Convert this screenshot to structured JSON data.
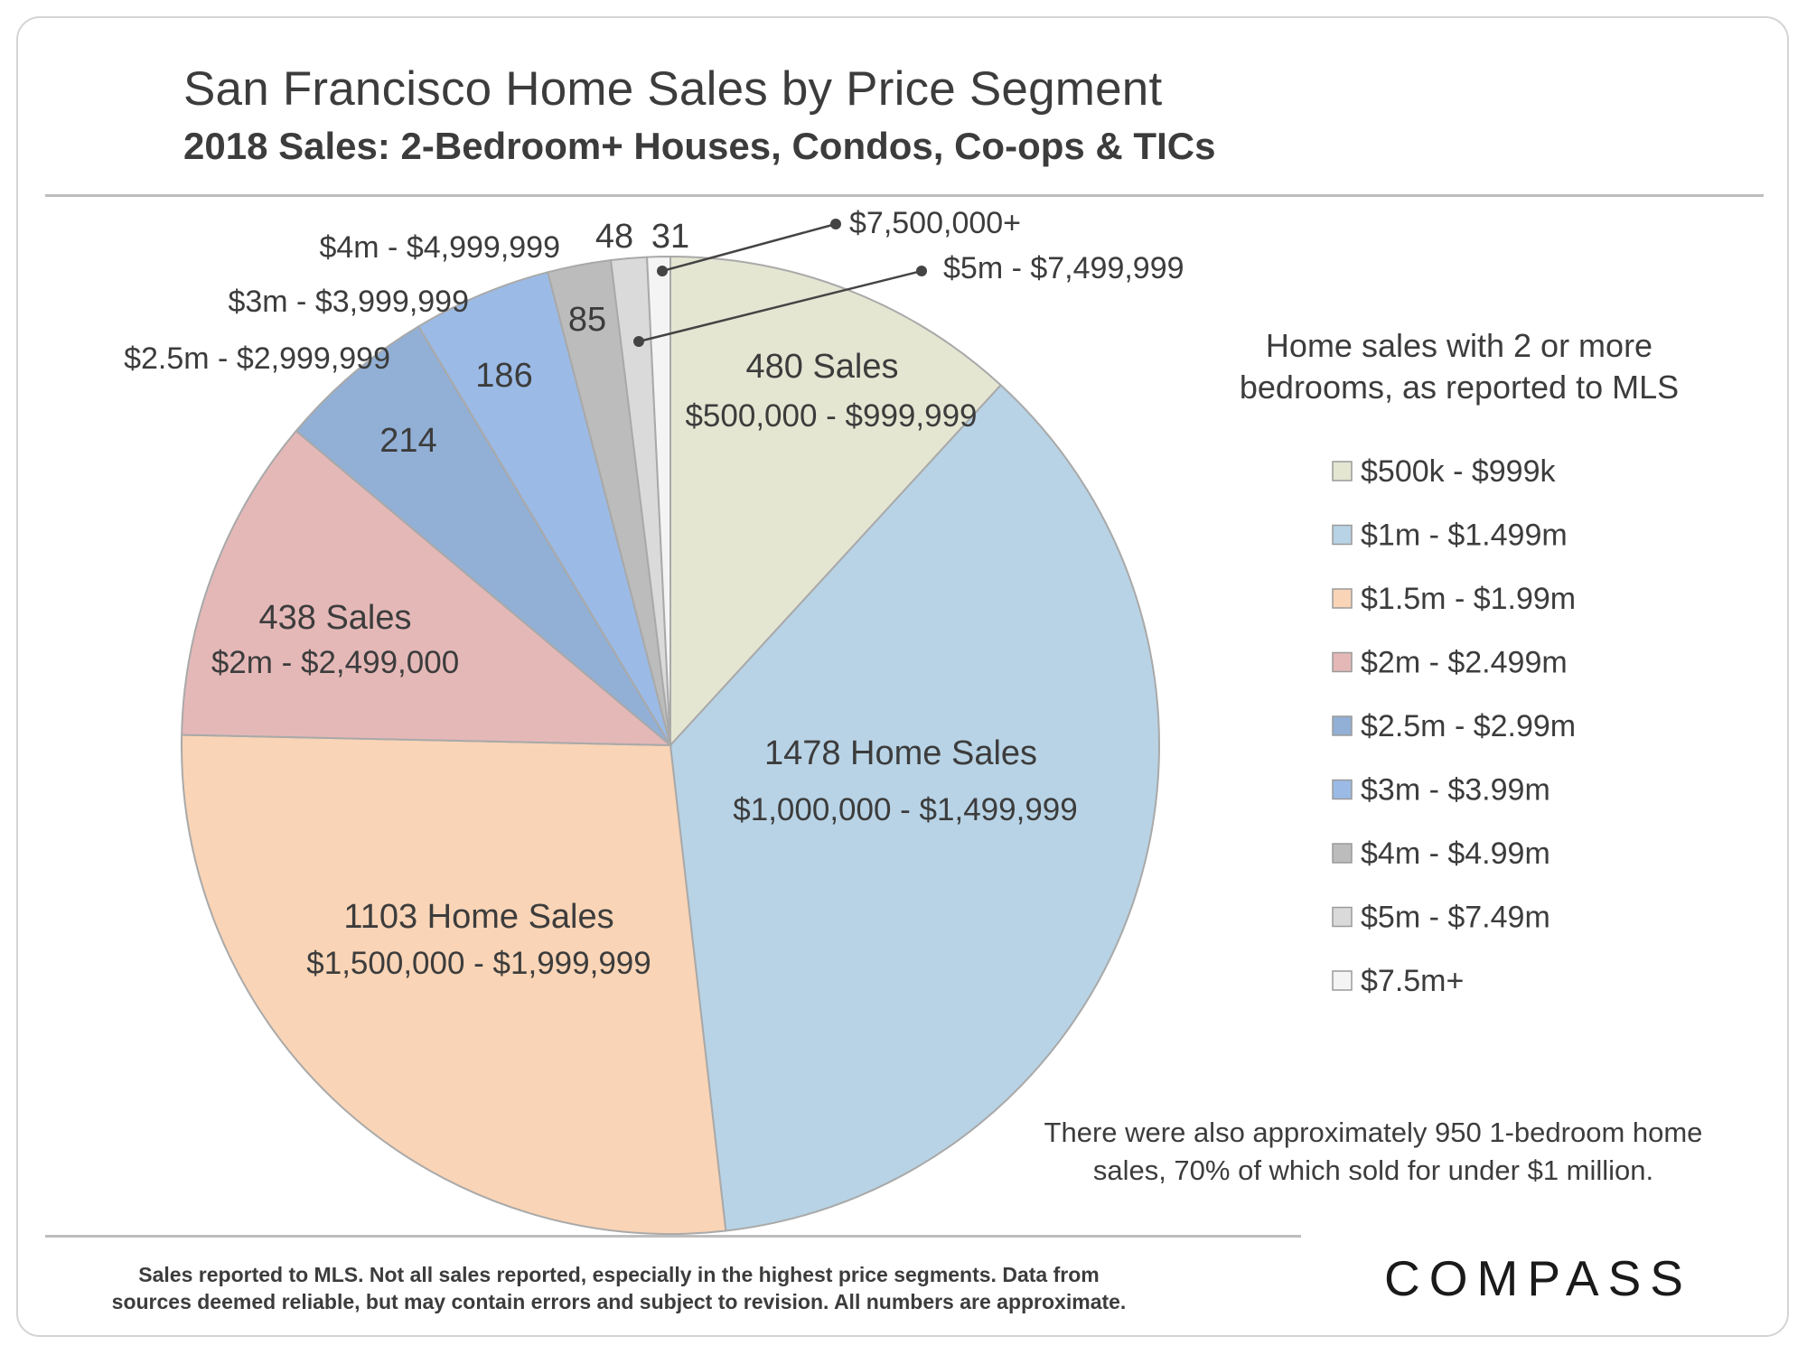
{
  "header": {
    "title": "San Francisco Home Sales by Price Segment",
    "subtitle": "2018 Sales: 2-Bedroom+ Houses, Condos, Co-ops & TICs"
  },
  "chart_data": {
    "type": "pie",
    "title": "San Francisco Home Sales by Price Segment",
    "subtitle": "2018 Sales: 2-Bedroom+ Houses, Condos, Co-ops & TICs",
    "start": "12 o'clock, clockwise",
    "slices": [
      {
        "legend": "$500k - $999k",
        "value": 480,
        "label": "480 Sales",
        "range": "$500,000 - $999,999",
        "color": "#e4e6d2"
      },
      {
        "legend": "$1m - $1.499m",
        "value": 1478,
        "label": "1478 Home Sales",
        "range": "$1,000,000 - $1,499,999",
        "color": "#b8d3e5"
      },
      {
        "legend": "$1.5m - $1.99m",
        "value": 1103,
        "label": "1103 Home Sales",
        "range": "$1,500,000 - $1,999,999",
        "color": "#f9d4b6"
      },
      {
        "legend": "$2m - $2.499m",
        "value": 438,
        "label": "438 Sales",
        "range": "$2m - $2,499,000",
        "color": "#e5b8b8"
      },
      {
        "legend": "$2.5m - $2.99m",
        "value": 214,
        "label": "214",
        "range": "$2.5m - $2,999,999",
        "color": "#92b0d6"
      },
      {
        "legend": "$3m - $3.99m",
        "value": 186,
        "label": "186",
        "range": "$3m - $3,999,999",
        "color": "#9bbbe6"
      },
      {
        "legend": "$4m - $4.99m",
        "value": 85,
        "label": "85",
        "range": "$4m - $4,999,999",
        "color": "#bcbcbc"
      },
      {
        "legend": "$5m - $7.49m",
        "value": 48,
        "label": "48",
        "range": "$5m - $7,499,999",
        "color": "#dadada"
      },
      {
        "legend": "$7.5m+",
        "value": 31,
        "label": "31",
        "range": "$7,500,000+",
        "color": "#f4f4f4"
      }
    ],
    "legend_title_lines": [
      "Home sales with 2 or more",
      "bedrooms, as reported to MLS"
    ],
    "note_lines": [
      "There were also approximately 950 1-bedroom home",
      "sales, 70% of which sold for under $1 million."
    ]
  },
  "footer": {
    "disclaimer": "Sales reported to MLS. Not all sales reported, especially in the highest price segments. Data from sources deemed reliable, but may contain errors and subject to revision. All numbers are approximate.",
    "logo": "COMPASS"
  }
}
